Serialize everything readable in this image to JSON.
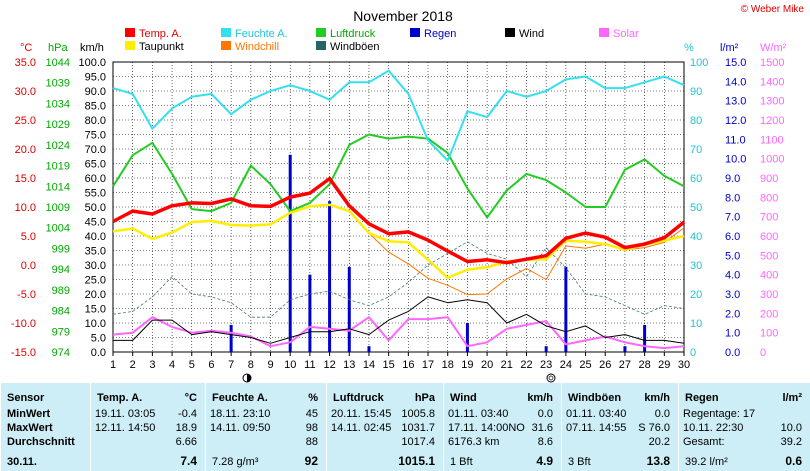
{
  "title": "November 2018",
  "credit": "© Weber Mike",
  "legend": [
    {
      "label": "Temp. A.",
      "color": "#ff0000"
    },
    {
      "label": "Feuchte A.",
      "color": "#33e0f0"
    },
    {
      "label": "Luftdruck",
      "color": "#22cc22"
    },
    {
      "label": "Regen",
      "color": "#0000cc"
    },
    {
      "label": "Wind",
      "color": "#000000"
    },
    {
      "label": "Solar",
      "color": "#ff66ff"
    },
    {
      "label": "Taupunkt",
      "color": "#ffee00"
    },
    {
      "label": "Windchill",
      "color": "#ff7700"
    },
    {
      "label": "Windböen",
      "color": "#226666"
    }
  ],
  "axes": {
    "temp": {
      "unit": "°C",
      "ticks": [
        "35.0",
        "30.0",
        "25.0",
        "20.0",
        "15.0",
        "10.0",
        "5.0",
        "0.0",
        "-5.0",
        "-10.0",
        "-15.0"
      ]
    },
    "pressure": {
      "unit": "hPa",
      "ticks": [
        "1044",
        "1039",
        "1034",
        "1029",
        "1024",
        "1019",
        "1014",
        "1009",
        "1004",
        "999",
        "994",
        "989",
        "984",
        "979",
        "974"
      ]
    },
    "wind": {
      "unit": "km/h",
      "ticks": [
        "100.0",
        "95.0",
        "90.0",
        "85.0",
        "80.0",
        "75.0",
        "70.0",
        "65.0",
        "60.0",
        "55.0",
        "50.0",
        "45.0",
        "40.0",
        "35.0",
        "30.0",
        "25.0",
        "20.0",
        "15.0",
        "10.0",
        "5.0",
        "0.0"
      ]
    },
    "humidity": {
      "unit": "%",
      "ticks": [
        "100",
        "90",
        "80",
        "70",
        "60",
        "50",
        "40",
        "30",
        "20",
        "10",
        "0"
      ]
    },
    "rain": {
      "unit": "l/m²",
      "ticks": [
        "15.0",
        "14.0",
        "13.0",
        "12.0",
        "11.0",
        "10.0",
        "9.0",
        "8.0",
        "7.0",
        "6.0",
        "5.0",
        "4.0",
        "3.0",
        "2.0",
        "1.0",
        "0.0"
      ]
    },
    "solar": {
      "unit": "W/m²",
      "ticks": [
        "1500",
        "1400",
        "1300",
        "1200",
        "1100",
        "1000",
        "900",
        "800",
        "700",
        "600",
        "500",
        "400",
        "300",
        "200",
        "100",
        "0"
      ]
    },
    "days": [
      "1",
      "2",
      "3",
      "4",
      "5",
      "6",
      "7",
      "8",
      "9",
      "10",
      "11",
      "12",
      "13",
      "14",
      "15",
      "16",
      "17",
      "18",
      "19",
      "20",
      "21",
      "22",
      "23",
      "24",
      "25",
      "26",
      "27",
      "28",
      "29",
      "30"
    ]
  },
  "chart_data": {
    "type": "line",
    "x": [
      1,
      2,
      3,
      4,
      5,
      6,
      7,
      8,
      9,
      10,
      11,
      12,
      13,
      14,
      15,
      16,
      17,
      18,
      19,
      20,
      21,
      22,
      23,
      24,
      25,
      26,
      27,
      28,
      29,
      30
    ],
    "ylim_temp": [
      -15,
      35
    ],
    "ylim_wind": [
      0,
      100
    ],
    "series": [
      {
        "name": "Temp. A.",
        "unit": "°C",
        "values": [
          7.5,
          9.3,
          8.8,
          10.2,
          10.7,
          10.6,
          11.4,
          10.2,
          10.1,
          11.7,
          12.4,
          14.9,
          10.2,
          7.1,
          5.4,
          5.7,
          4.3,
          2.4,
          0.6,
          0.9,
          0.4,
          1.0,
          1.6,
          4.6,
          5.5,
          4.8,
          3.0,
          3.6,
          4.7,
          7.4
        ]
      },
      {
        "name": "Taupunkt",
        "unit": "°C",
        "values": [
          5.8,
          6.3,
          4.5,
          5.6,
          7.4,
          7.6,
          6.9,
          6.8,
          7.0,
          9.0,
          10.1,
          10.4,
          9.3,
          5.5,
          4.1,
          3.9,
          0.9,
          -2.2,
          -0.8,
          -0.4,
          0.6,
          0.9,
          1.0,
          4.2,
          4.0,
          3.6,
          2.6,
          3.5,
          4.2,
          5.0
        ]
      },
      {
        "name": "Windchill",
        "unit": "°C",
        "values": [
          5.8,
          6.3,
          4.5,
          5.6,
          7.4,
          7.6,
          6.9,
          6.8,
          7.0,
          9.0,
          10.1,
          10.4,
          9.3,
          5.5,
          2.2,
          0.2,
          -2.3,
          -3.5,
          -5.1,
          -5.0,
          -2.4,
          -0.6,
          -2.5,
          3.3,
          2.9,
          3.6,
          2.6,
          3.0,
          3.9,
          6.4
        ]
      },
      {
        "name": "Feuchte A.",
        "unit": "%",
        "values": [
          91,
          89,
          77,
          84,
          88,
          89,
          82,
          87,
          90,
          92,
          90,
          87,
          93,
          93,
          97,
          89,
          73,
          66,
          83,
          81,
          90,
          88,
          90,
          94,
          95,
          91,
          91,
          93,
          95,
          92
        ]
      },
      {
        "name": "Luftdruck",
        "unit": "hPa",
        "values": [
          1014.0,
          1021.5,
          1024.5,
          1017.0,
          1008.5,
          1008.0,
          1010.0,
          1019.0,
          1014.5,
          1008.0,
          1010.0,
          1014.5,
          1024.0,
          1026.5,
          1025.5,
          1026.0,
          1025.5,
          1022.0,
          1013.5,
          1006.5,
          1013.0,
          1017.0,
          1015.5,
          1012.5,
          1009.0,
          1009.0,
          1018.0,
          1020.5,
          1016.5,
          1014.0
        ]
      },
      {
        "name": "Wind",
        "unit": "km/h",
        "values": [
          4,
          4,
          11,
          11,
          6,
          7,
          6,
          5,
          3,
          5,
          7,
          7,
          8,
          6,
          11,
          14,
          19,
          17,
          18,
          17,
          10,
          13,
          9,
          7,
          9,
          5,
          6,
          4,
          4,
          3
        ]
      },
      {
        "name": "Windböen",
        "unit": "km/h",
        "values": [
          13,
          14,
          19,
          26,
          20,
          19,
          17,
          12,
          12,
          18,
          20,
          21,
          18,
          16,
          19,
          24,
          30,
          34,
          38,
          34,
          32,
          26,
          36,
          29,
          20,
          19,
          16,
          13,
          16,
          15
        ]
      },
      {
        "name": "Solar",
        "unit": "W/m²",
        "values": [
          90,
          100,
          180,
          130,
          100,
          110,
          100,
          80,
          30,
          50,
          130,
          120,
          110,
          180,
          60,
          170,
          170,
          180,
          30,
          50,
          120,
          140,
          160,
          40,
          60,
          80,
          50,
          30,
          20,
          30
        ]
      },
      {
        "name": "Regen",
        "unit": "l/m²",
        "values": [
          0,
          0,
          0,
          0,
          0,
          0,
          1.4,
          0,
          0,
          10.2,
          4.0,
          7.8,
          4.4,
          0.3,
          0,
          0,
          0,
          0,
          1.5,
          0,
          0,
          0,
          0.3,
          4.4,
          0,
          0,
          0.3,
          1.4,
          0,
          0
        ]
      }
    ]
  },
  "table": {
    "columns": [
      {
        "title": "Sensor",
        "unit": "",
        "rows": [
          "MinWert",
          "MaxWert",
          "Durchschnitt"
        ],
        "last": "30.11."
      },
      {
        "title": "Temp. A.",
        "unit": "°C",
        "rows": [
          [
            "19.11.  03:05",
            "-0.4"
          ],
          [
            "12.11.  14:50",
            "18.9"
          ],
          [
            "",
            "6.66"
          ]
        ],
        "last": "7.4"
      },
      {
        "title": "Feuchte A.",
        "unit": "%",
        "rows": [
          [
            "18.11.  23:10",
            "45"
          ],
          [
            "14.11.  09:50",
            "98"
          ],
          [
            "",
            "88"
          ]
        ],
        "last_note": "7.28 g/m³",
        "last": "92"
      },
      {
        "title": "Luftdruck",
        "unit": "hPa",
        "rows": [
          [
            "20.11.  15:45",
            "1005.8"
          ],
          [
            "14.11.  02:45",
            "1031.7"
          ],
          [
            "",
            "1017.4"
          ]
        ],
        "last": "1015.1"
      },
      {
        "title": "Wind",
        "unit": "km/h",
        "rows": [
          [
            "01.11.  03:40",
            "0.0"
          ],
          [
            "17.11.  14:00NO",
            "31.6"
          ],
          [
            "6176.3 km",
            "8.6"
          ]
        ],
        "last_note": "1 Bft",
        "last": "4.9"
      },
      {
        "title": "Windböen",
        "unit": "km/h",
        "rows": [
          [
            "01.11.  03:40",
            "0.0"
          ],
          [
            "07.11.  14:55",
            "S 76.0"
          ],
          [
            "",
            "20.2"
          ]
        ],
        "last_note": "3 Bft",
        "last": "13.8"
      },
      {
        "title": "Regen",
        "unit": "l/m²",
        "rows": [
          [
            "Regentage: 17",
            ""
          ],
          [
            "10.11.  22:30",
            "10.0"
          ],
          [
            "Gesamt:",
            "39.2"
          ]
        ],
        "last_note": "39.2 l/m²",
        "last": "0.6"
      }
    ]
  }
}
